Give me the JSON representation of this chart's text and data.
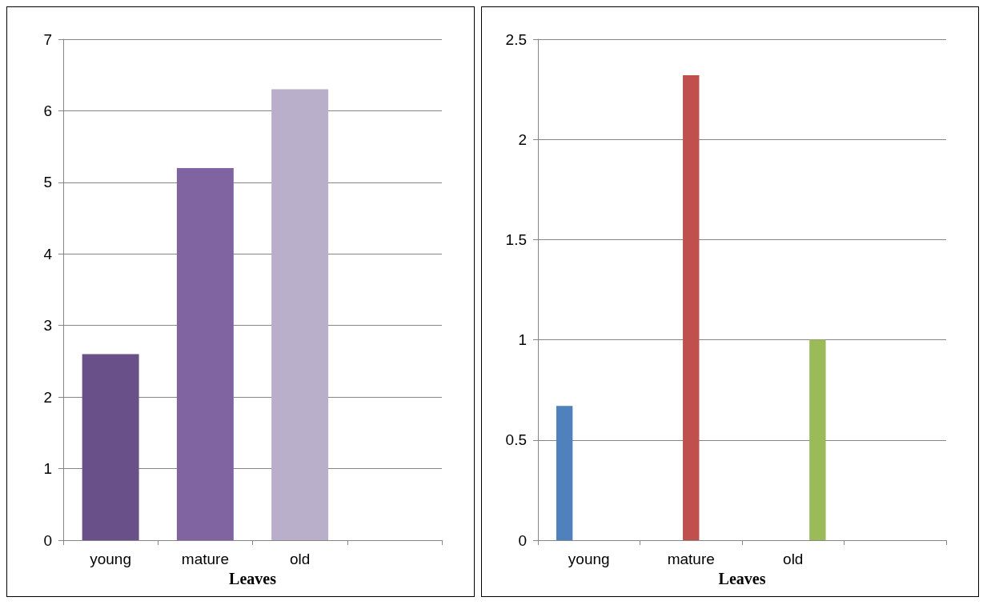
{
  "chart_data": [
    {
      "type": "bar",
      "categories": [
        "young",
        "mature",
        "old",
        null
      ],
      "values": [
        2.6,
        5.2,
        6.3,
        null
      ],
      "colors": [
        "#6a5088",
        "#8064a2",
        "#b9afcb",
        null
      ],
      "xlabel": "Leaves",
      "ylim": [
        0,
        7
      ],
      "yticks": [
        0,
        1,
        2,
        3,
        4,
        5,
        6,
        7
      ],
      "grid": "y"
    },
    {
      "type": "bar",
      "categories": [
        "young",
        "mature",
        "old",
        null
      ],
      "series": [
        {
          "color": "#4f81bd",
          "values": [
            0.67,
            null,
            null,
            null
          ]
        },
        {
          "color": "#c0504d",
          "values": [
            null,
            2.32,
            null,
            null
          ]
        },
        {
          "color": "#9bbb59",
          "values": [
            null,
            null,
            1.0,
            null
          ]
        }
      ],
      "xlabel": "Leaves",
      "ylim": [
        0,
        2.5
      ],
      "yticks": [
        0,
        0.5,
        1,
        1.5,
        2,
        2.5
      ],
      "grid": "y"
    }
  ]
}
